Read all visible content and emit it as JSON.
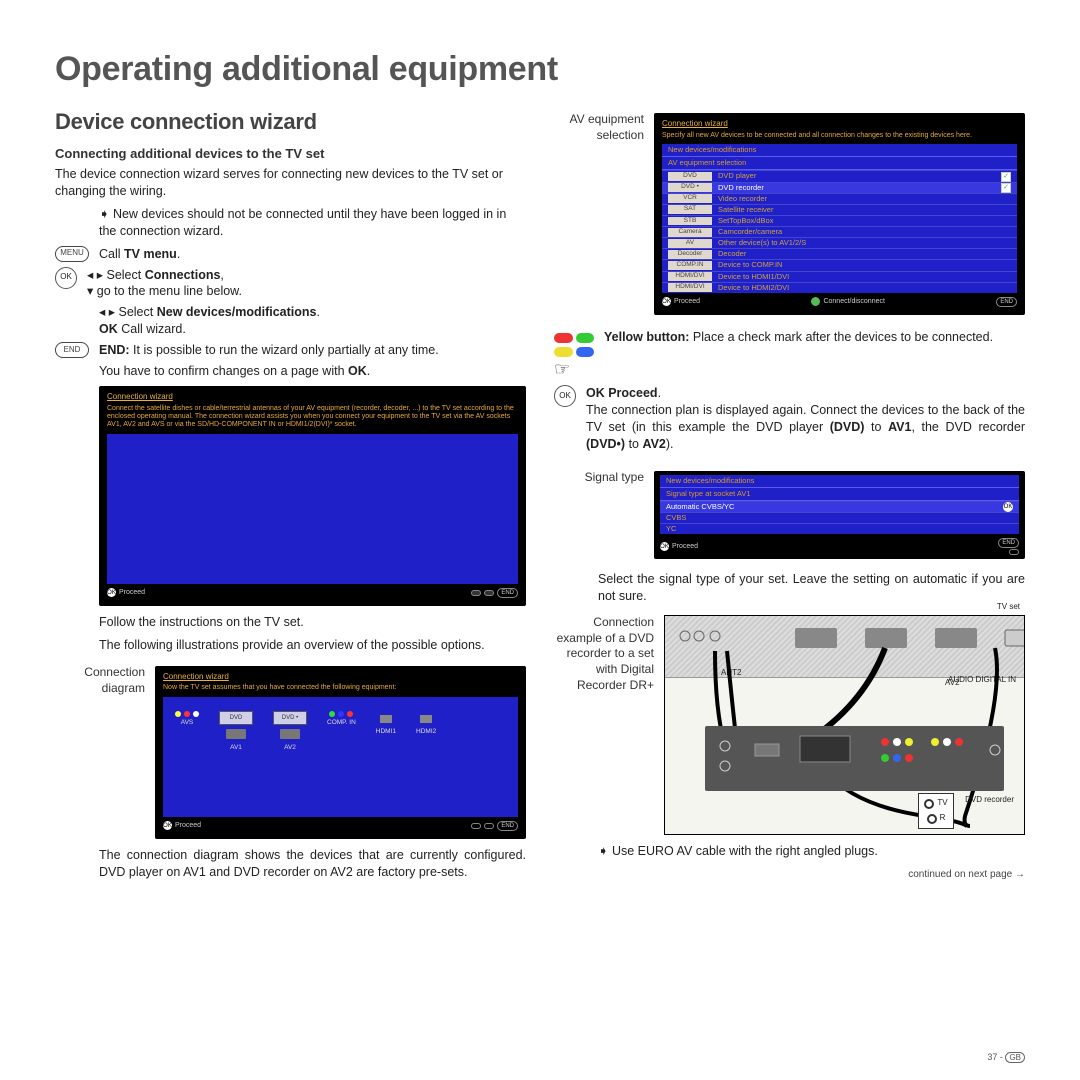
{
  "title": "Operating additional equipment",
  "section": "Device connection wizard",
  "subsection": "Connecting additional devices to the TV set",
  "intro": "The device connection wizard serves for connecting new devices to the TV set or changing the wiring.",
  "note1": "New devices should not be connected until they have been logged in in the connection wizard.",
  "menu_btn": "MENU",
  "call_tv_menu": "Call ",
  "tv_menu_b": "TV menu",
  "ok_label": "OK",
  "sel_conn_arrow": "◂ ▸ Select ",
  "connections_b": "Connections",
  "goto_menu": "▾ go to the menu line below.",
  "sel_new": "◂ ▸ Select ",
  "new_dev_b": "New devices/modifications",
  "ok_call": "OK Call wizard.",
  "end_btn": "END",
  "end_text_b": "END:",
  "end_text": " It is possible to run the wizard only partially at any time.",
  "confirm_text": "You have to confirm changes on a page with ",
  "ok_b": "OK",
  "screen1": {
    "title": "Connection wizard",
    "desc": "Connect the satellite dishes or cable/terrestrial antennas of your AV equipment (recorder, decoder, ...) to the TV set according to the enclosed operating manual. The connection wizard assists you when you connect your equipment to the TV set via the AV sockets AV1, AV2 and AVS or via the SD/HD-COMPONENT IN or HDMI1/2(DVI)* socket.",
    "proceed": "Proceed",
    "end": "END"
  },
  "follow": "Follow the instructions on the TV set.",
  "overview": "The following illustrations provide an overview of the possible options.",
  "conn_diag_label": "Connection diagram",
  "screen2": {
    "title": "Connection wizard",
    "desc": "Now the TV set assumes that you have connected the following equipment:",
    "dvd": "DVD",
    "dvd_dot": "DVD •",
    "avs": "AVS",
    "av1": "AV1",
    "av2": "AV2",
    "compin": "COMP. IN",
    "hdmi1": "HDMI1",
    "hdmi2": "HDMI2",
    "proceed": "Proceed",
    "end": "END"
  },
  "diag_desc": "The connection diagram shows the devices that are currently configured. DVD player on AV1 and DVD recorder on AV2 are factory pre-sets.",
  "right": {
    "av_sel_label": "AV equipment selection",
    "screen3": {
      "title": "Connection wizard",
      "desc": "Specify all new AV devices to be connected and all connection changes to the existing devices here.",
      "hdr1": "New devices/modifications",
      "hdr2": "AV equipment selection",
      "rows": [
        {
          "tag": "DVD",
          "label": "DVD player",
          "chk": true
        },
        {
          "tag": "DVD •",
          "label": "DVD recorder",
          "chk": true,
          "sel": true
        },
        {
          "tag": "VCR",
          "label": "Video recorder"
        },
        {
          "tag": "SAT",
          "label": "Satellite receiver"
        },
        {
          "tag": "STB",
          "label": "SetTopBox/dBox"
        },
        {
          "tag": "Camera",
          "label": "Camcorder/camera"
        },
        {
          "tag": "AV",
          "label": "Other device(s) to AV1/2/S"
        },
        {
          "tag": "Decoder",
          "label": "Decoder"
        },
        {
          "tag": "COMP.IN",
          "label": "Device to COMP.IN"
        },
        {
          "tag": "HDMI/DVI",
          "label": "Device to HDMI1/DVI"
        },
        {
          "tag": "HDMI/DVI",
          "label": "Device to HDMI2/DVI"
        }
      ],
      "proceed": "Proceed",
      "connect": "Connect/disconnect",
      "end": "END"
    },
    "yellow_b": "Yellow button:",
    "yellow_text": " Place a check mark after the devices to be connected.",
    "ok_proceed": "OK  Proceed",
    "plan_text1": "The connection plan is displayed again. Connect the devices to the back of the TV set (in this example the DVD player ",
    "plan_dvd": "(DVD)",
    "plan_to1": " to ",
    "plan_av1": "AV1",
    "plan_mid": ", the DVD recorder ",
    "plan_dvddot": "(DVD•)",
    "plan_to2": " to ",
    "plan_av2": "AV2",
    "plan_end": ").",
    "sig_label": "Signal type",
    "screen4": {
      "hdr1": "New devices/modifications",
      "hdr2": "Signal type at socket AV1",
      "opt1": "Automatic CVBS/YC",
      "opt2": "CVBS",
      "opt3": "YC",
      "proceed": "Proceed",
      "ok": "OK",
      "end": "END"
    },
    "sig_text": "Select the signal type of your set. Leave the setting on automatic if you are not sure.",
    "conn_ex_label": "Connection example of a DVD recorder to a set with Digital Recorder DR+",
    "diagram": {
      "tvset": "TV set",
      "ant2": "ANT2",
      "av2": "AV2",
      "audio": "AUDIO DIGITAL IN",
      "tv": "TV",
      "r": "R",
      "dvdrec": "DVD recorder"
    },
    "euro": "Use EURO AV cable with the right angled plugs.",
    "continued": "continued on next page →"
  },
  "pagenum": "37 - ",
  "gb": "GB"
}
